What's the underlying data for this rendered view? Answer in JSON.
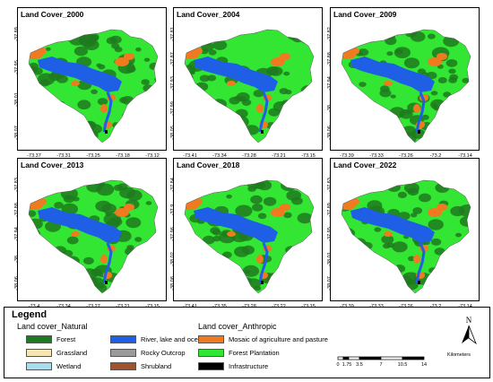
{
  "panels": [
    {
      "title": "Land Cover_2000",
      "yticks": [
        "-37.89",
        "-37.95",
        "-38.01",
        "-38.07"
      ],
      "xticks": [
        "-73.37",
        "-73.31",
        "-73.25",
        "-73.18",
        "-73.12"
      ]
    },
    {
      "title": "Land Cover_2004",
      "yticks": [
        "-37.81",
        "-37.87",
        "-37.93",
        "-37.99",
        "-38.05"
      ],
      "xticks": [
        "-73.41",
        "-73.34",
        "-73.28",
        "-73.21",
        "-73.15"
      ]
    },
    {
      "title": "Land Cover_2009",
      "yticks": [
        "-37.82",
        "-37.88",
        "-37.94",
        "-38",
        "-38.06"
      ],
      "xticks": [
        "-73.39",
        "-73.33",
        "-73.26",
        "-73.2",
        "-73.14"
      ]
    },
    {
      "title": "Land Cover_2013",
      "yticks": [
        "-37.83",
        "-37.88",
        "-37.94",
        "-38",
        "-38.06"
      ],
      "xticks": [
        "-73.4",
        "-73.34",
        "-73.27",
        "-73.21",
        "-73.15"
      ]
    },
    {
      "title": "Land Cover_2018",
      "yticks": [
        "-37.84",
        "-37.9",
        "-37.96",
        "-38.02",
        "-38.08"
      ],
      "xticks": [
        "-73.41",
        "-73.35",
        "-73.28",
        "-73.22",
        "-73.15"
      ]
    },
    {
      "title": "Land Cover_2022",
      "yticks": [
        "-37.83",
        "-37.89",
        "-37.95",
        "-38.01",
        "-38.07"
      ],
      "xticks": [
        "-73.39",
        "-73.33",
        "-73.26",
        "-73.2",
        "-73.14"
      ]
    }
  ],
  "legend": {
    "title": "Legend",
    "natural_label": "Land cover_Natural",
    "anthropic_label": "Land cover_Anthropic",
    "natural_col1": [
      {
        "label": "Forest",
        "color": "#1e7a1e"
      },
      {
        "label": "Grassland",
        "color": "#f5e6b4"
      },
      {
        "label": "Wetland",
        "color": "#a8dcf0"
      }
    ],
    "natural_col2": [
      {
        "label": "River, lake and ocean",
        "color": "#1f5fe6"
      },
      {
        "label": "Rocky Outcrop",
        "color": "#9a9a9a"
      },
      {
        "label": "Shrubland",
        "color": "#a0522d"
      }
    ],
    "anthropic": [
      {
        "label": "Mosaic of agriculture and pasture",
        "color": "#f07a20"
      },
      {
        "label": "Forest Plantation",
        "color": "#33e633"
      },
      {
        "label": "Infrastructure",
        "color": "#000000"
      }
    ]
  },
  "north_label": "N",
  "scale": {
    "unit": "Kilometers",
    "labels": [
      "0",
      "1.75",
      "3.5",
      "7",
      "10.5",
      "14"
    ]
  },
  "colors": {
    "forest": "#1e7a1e",
    "plantation": "#33e633",
    "water": "#1f5fe6",
    "agriculture": "#f07a20",
    "infrastructure": "#000000"
  }
}
